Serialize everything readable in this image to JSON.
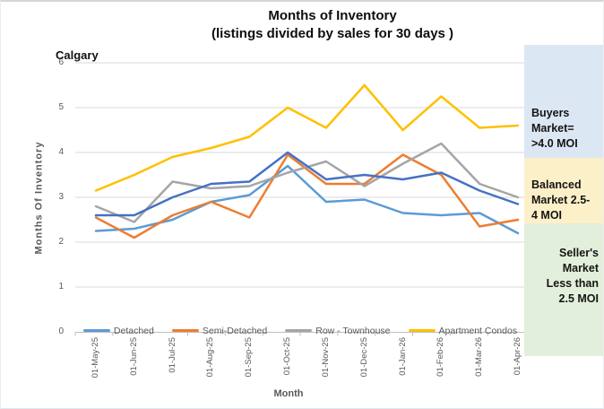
{
  "title": {
    "line1": "Months of Inventory",
    "line2": "(listings divided by sales for 30 days )"
  },
  "region_label": "Calgary",
  "chart_data": {
    "type": "line",
    "title": "Months of Inventory (listings divided by sales for 30 days )",
    "region": "Calgary",
    "xlabel": "Month",
    "ylabel": "Months Of Inventory",
    "ylim": [
      0,
      6
    ],
    "ytick_interval": 1,
    "grid": true,
    "legend_position": "bottom",
    "categories": [
      "01-May-25",
      "01-Jun-25",
      "01-Jul-25",
      "01-Aug-25",
      "01-Sep-25",
      "01-Oct-25",
      "01-Nov-25",
      "01-Dec-25",
      "01-Jan-26",
      "01-Feb-26",
      "01-Mar-26",
      "01-Apr-26"
    ],
    "series": [
      {
        "name": "Detached",
        "color": "#5B9BD5",
        "in_legend": true,
        "values": [
          2.25,
          2.3,
          2.5,
          2.9,
          3.05,
          3.7,
          2.9,
          2.95,
          2.65,
          2.6,
          2.65,
          2.2
        ]
      },
      {
        "name": "Semi-Detached",
        "color": "#ED7D31",
        "in_legend": true,
        "values": [
          2.55,
          2.1,
          2.6,
          2.9,
          2.55,
          3.95,
          3.3,
          3.3,
          3.95,
          3.5,
          2.35,
          2.5
        ]
      },
      {
        "name": "Row - Townhouse",
        "color": "#A5A5A5",
        "in_legend": true,
        "values": [
          2.8,
          2.45,
          3.35,
          3.2,
          3.25,
          3.55,
          3.8,
          3.25,
          3.75,
          4.2,
          3.3,
          3.0
        ]
      },
      {
        "name": "Apartment Condos",
        "color": "#FFC000",
        "in_legend": true,
        "values": [
          3.15,
          3.5,
          3.9,
          4.1,
          4.35,
          5.0,
          4.55,
          5.5,
          4.5,
          5.25,
          4.55,
          4.6
        ]
      },
      {
        "name": "",
        "color": "#4472C4",
        "in_legend": false,
        "values": [
          2.6,
          2.6,
          3.0,
          3.3,
          3.35,
          4.0,
          3.4,
          3.5,
          3.4,
          3.55,
          3.15,
          2.85
        ]
      }
    ],
    "gridline_color": "#D9D9D9",
    "axis_color": "#BFBFBF"
  },
  "annotations": {
    "buyers": {
      "text": "Buyers\nMarket=\n>4.0 MOI",
      "bg": "#DBE7F3"
    },
    "balanced": {
      "text": "Balanced\nMarket 2.5-\n4 MOI",
      "bg": "#FCF0C8"
    },
    "sellers": {
      "text": "Seller's\nMarket\nLess than\n2.5 MOI",
      "bg": "#E2EFDB"
    }
  }
}
